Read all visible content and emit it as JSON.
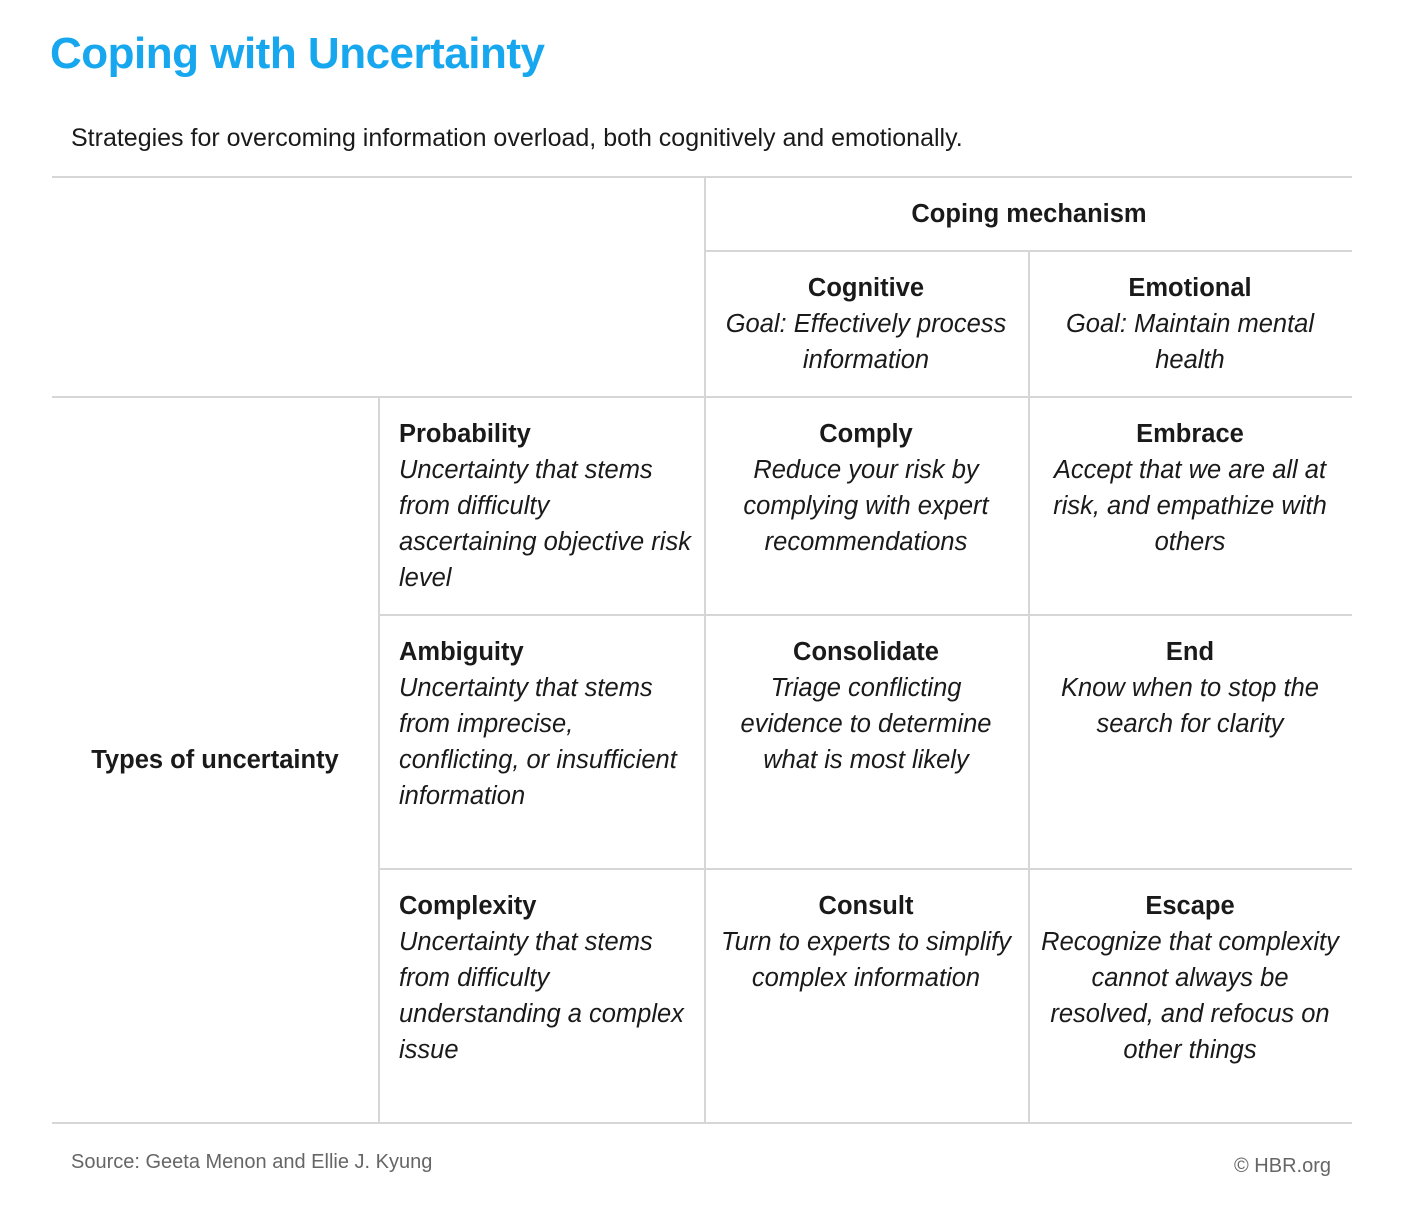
{
  "title": "Coping with Uncertainty",
  "subtitle": "Strategies for overcoming information overload, both cognitively and emotionally.",
  "colors": {
    "title": "#17a7ef",
    "rule": "#d6d6d6",
    "text": "#1a1a1a",
    "footer": "#666666"
  },
  "table": {
    "column_group_header": "Coping mechanism",
    "row_group_header": "Types of uncertainty",
    "columns": [
      {
        "name": "Cognitive",
        "goal": "Goal: Effectively process information"
      },
      {
        "name": "Emotional",
        "goal": "Goal: Maintain mental health"
      }
    ],
    "rows": [
      {
        "name": "Probability",
        "description": "Uncertainty that stems from difficulty ascertaining objective risk level",
        "cells": [
          {
            "name": "Comply",
            "description": "Reduce your risk by complying with expert recommendations"
          },
          {
            "name": "Embrace",
            "description": "Accept that we are all at risk, and empathize with others"
          }
        ]
      },
      {
        "name": "Ambiguity",
        "description": "Uncertainty that stems from imprecise, conflicting, or insufficient information",
        "cells": [
          {
            "name": "Consolidate",
            "description": "Triage conflicting evidence to determine what is most likely"
          },
          {
            "name": "End",
            "description": "Know when to stop the search for clarity"
          }
        ]
      },
      {
        "name": "Complexity",
        "description": "Uncertainty that stems from difficulty understanding a complex issue",
        "cells": [
          {
            "name": "Consult",
            "description": "Turn to experts to simplify complex information"
          },
          {
            "name": "Escape",
            "description": "Recognize that complexity cannot always be resolved, and refocus on other things"
          }
        ]
      }
    ]
  },
  "footer": {
    "source": "Source: Geeta Menon and Ellie J. Kyung",
    "credit": "© HBR.org"
  }
}
